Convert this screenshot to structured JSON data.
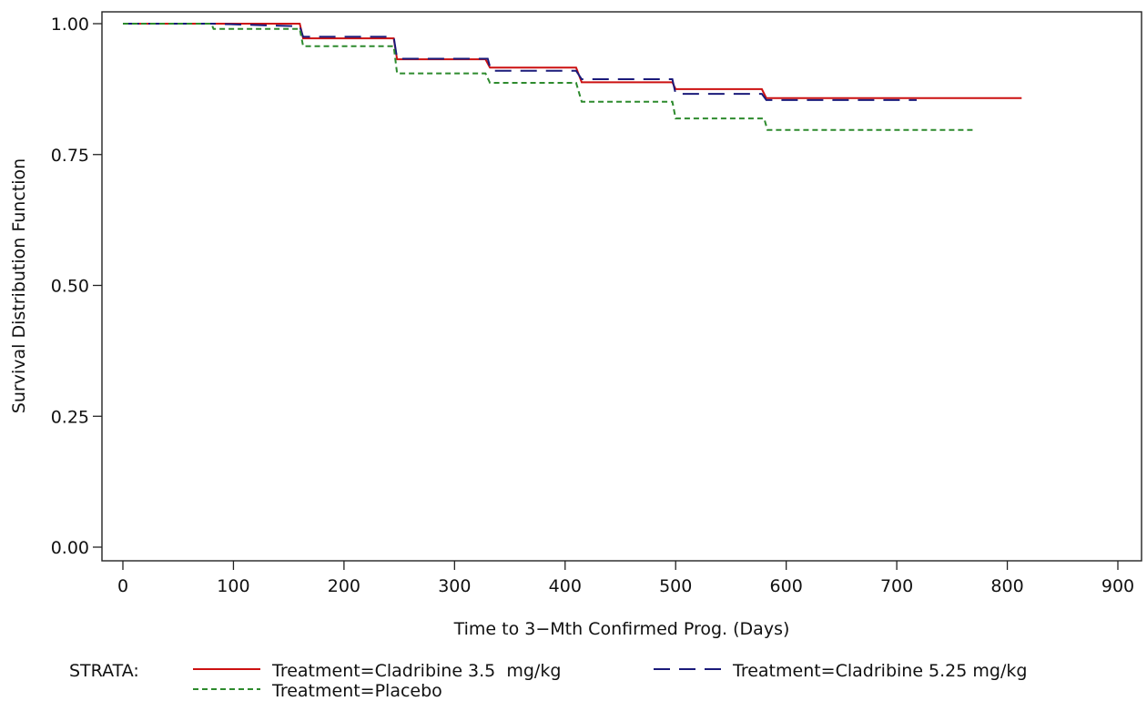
{
  "chart_data": {
    "type": "line",
    "title": "",
    "xlabel": "Time to 3−Mth Confirmed Prog. (Days)",
    "ylabel": "Survival Distribution Function",
    "xlim": [
      0,
      900
    ],
    "ylim": [
      0,
      1
    ],
    "x_ticks": [
      0,
      100,
      200,
      300,
      400,
      500,
      600,
      700,
      800,
      900
    ],
    "x_tick_labels": [
      "0",
      "100",
      "200",
      "300",
      "400",
      "500",
      "600",
      "700",
      "800",
      "900"
    ],
    "y_ticks": [
      0,
      0.25,
      0.5,
      0.75,
      1
    ],
    "y_tick_labels": [
      "0.00",
      "0.25",
      "0.50",
      "0.75",
      "1.00"
    ],
    "grid": false,
    "legend": {
      "title": "STRATA:",
      "placement": "bottom"
    },
    "series": [
      {
        "name": "Treatment=Cladribine 3.5  mg/kg",
        "color": "#cc1111",
        "dash": "solid",
        "x": [
          0,
          160,
          163,
          245,
          248,
          328,
          332,
          410,
          415,
          497,
          500,
          578,
          582,
          813
        ],
        "y": [
          1.0,
          1.0,
          0.972,
          0.972,
          0.932,
          0.932,
          0.916,
          0.916,
          0.888,
          0.888,
          0.875,
          0.875,
          0.858,
          0.858
        ]
      },
      {
        "name": "Treatment=Cladribine 5.25 mg/kg",
        "color": "#1a1a7a",
        "dash": "long-dash",
        "x": [
          0,
          80,
          160,
          163,
          245,
          248,
          330,
          333,
          410,
          415,
          497,
          500,
          578,
          582,
          718
        ],
        "y": [
          1.0,
          1.0,
          0.995,
          0.975,
          0.975,
          0.933,
          0.933,
          0.91,
          0.91,
          0.894,
          0.894,
          0.866,
          0.866,
          0.854,
          0.854
        ]
      },
      {
        "name": "Treatment=Placebo",
        "color": "#2d8a2d",
        "dash": "short-dash",
        "x": [
          0,
          80,
          82,
          160,
          163,
          245,
          248,
          328,
          332,
          410,
          415,
          497,
          500,
          580,
          583,
          770
        ],
        "y": [
          1.0,
          1.0,
          0.99,
          0.99,
          0.957,
          0.957,
          0.905,
          0.905,
          0.887,
          0.887,
          0.851,
          0.851,
          0.819,
          0.819,
          0.797,
          0.797
        ]
      }
    ]
  }
}
